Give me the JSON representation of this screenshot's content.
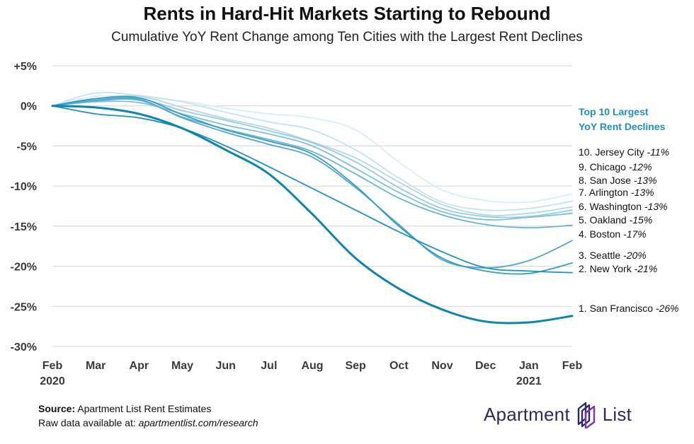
{
  "title": "Rents in Hard-Hit Markets Starting to Rebound",
  "subtitle": "Cumulative YoY Rent Change among Ten Cities with the Largest Rent Declines",
  "source": {
    "label": "Source:",
    "text": "Apartment List Rent Estimates",
    "raw_prefix": "Raw data available at:",
    "raw_link": "apartmentlist.com/research"
  },
  "logo": {
    "word1": "Apartment",
    "word2": "List",
    "brand_color": "#2e2960",
    "icon": "apartment-list-logo-icon"
  },
  "chart_data": {
    "type": "line",
    "title": "Rents in Hard-Hit Markets Starting to Rebound",
    "subtitle": "Cumulative YoY Rent Change among Ten Cities with the Largest Rent Declines",
    "x": [
      "Feb",
      "Mar",
      "Apr",
      "May",
      "Jun",
      "Jul",
      "Aug",
      "Sep",
      "Oct",
      "Nov",
      "Dec",
      "Jan",
      "Feb"
    ],
    "x_year_labels": [
      {
        "index": 0,
        "label": "2020"
      },
      {
        "index": 11,
        "label": "2021"
      }
    ],
    "yticks": [
      5,
      0,
      -5,
      -10,
      -15,
      -20,
      -25,
      -30
    ],
    "ytick_labels": [
      "+5%",
      "0%",
      "-5%",
      "-10%",
      "-15%",
      "-20%",
      "-25%",
      "-30%"
    ],
    "ylim": [
      -30,
      5
    ],
    "grid": "horizontal",
    "legend_title": [
      "Top 10 Largest",
      "YoY Rent Declines"
    ],
    "legend_title_color": "#1f8fbf",
    "series": [
      {
        "name": "10. Jersey City",
        "value_label": "-11%",
        "color": "#dbeef5",
        "width": 1.8,
        "values": [
          0,
          1.2,
          1.0,
          0.6,
          -0.3,
          -1.0,
          -1.5,
          -3.0,
          -7.0,
          -10.5,
          -11.8,
          -12.0,
          -11.0
        ]
      },
      {
        "name": "9. Chicago",
        "value_label": "-12%",
        "color": "#c5e3ef",
        "width": 1.8,
        "values": [
          0,
          1.6,
          1.3,
          0.5,
          -0.8,
          -2.0,
          -3.0,
          -5.5,
          -9.0,
          -12.0,
          -13.0,
          -12.8,
          -11.9
        ]
      },
      {
        "name": "8. San Jose",
        "value_label": "-13%",
        "color": "#aed7e8",
        "width": 1.8,
        "values": [
          0,
          0.9,
          1.2,
          -0.2,
          -1.6,
          -2.8,
          -4.5,
          -6.5,
          -9.5,
          -12.3,
          -13.6,
          -13.4,
          -12.6
        ]
      },
      {
        "name": "7. Arlington",
        "value_label": "-13%",
        "color": "#96cce1",
        "width": 1.8,
        "values": [
          0,
          0.8,
          0.9,
          -0.6,
          -1.8,
          -3.1,
          -4.6,
          -7.0,
          -10.2,
          -12.8,
          -13.8,
          -13.8,
          -13.0
        ]
      },
      {
        "name": "6. Washington",
        "value_label": "-13%",
        "color": "#7fc0da",
        "width": 1.8,
        "values": [
          0,
          0.5,
          0.4,
          -1.0,
          -2.4,
          -3.5,
          -5.0,
          -7.8,
          -10.8,
          -13.2,
          -14.2,
          -13.9,
          -13.4
        ]
      },
      {
        "name": "5. Oakland",
        "value_label": "-15%",
        "color": "#68b4d3",
        "width": 1.8,
        "values": [
          0,
          0.6,
          0.7,
          -1.4,
          -2.9,
          -4.2,
          -5.7,
          -8.5,
          -11.5,
          -13.6,
          -14.8,
          -15.2,
          -14.9
        ]
      },
      {
        "name": "4. Boston",
        "value_label": "-17%",
        "color": "#50a8cc",
        "width": 1.8,
        "values": [
          0,
          0.7,
          0.8,
          -1.5,
          -3.3,
          -4.8,
          -6.4,
          -10.2,
          -14.8,
          -19.2,
          -20.2,
          -19.3,
          -16.8
        ]
      },
      {
        "name": "3. Seattle",
        "value_label": "-20%",
        "color": "#389cc4",
        "width": 1.8,
        "values": [
          0,
          0.9,
          1.0,
          -1.1,
          -3.0,
          -4.4,
          -6.0,
          -10.0,
          -15.0,
          -19.0,
          -20.6,
          -20.9,
          -19.6
        ]
      },
      {
        "name": "2. New York",
        "value_label": "-21%",
        "color": "#2090bd",
        "width": 1.8,
        "values": [
          0,
          -1.0,
          -1.5,
          -2.8,
          -5.0,
          -7.6,
          -10.3,
          -13.0,
          -15.7,
          -18.2,
          -20.2,
          -20.6,
          -20.8
        ]
      },
      {
        "name": "1. San Francisco",
        "value_label": "-26%",
        "color": "#0c84b2",
        "width": 3.0,
        "values": [
          0,
          -0.2,
          -1.0,
          -2.8,
          -5.5,
          -8.5,
          -13.5,
          -19.0,
          -22.8,
          -25.4,
          -26.9,
          -27.0,
          -26.2
        ]
      }
    ]
  }
}
